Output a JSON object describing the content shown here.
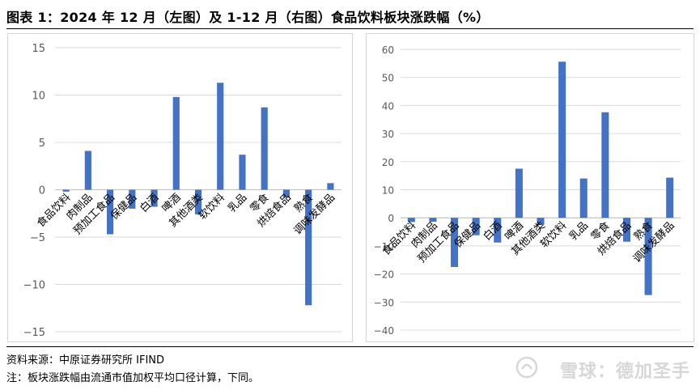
{
  "header": {
    "title": "图表 1：2024 年 12 月（左图）及 1-12 月（右图）食品饮料板块涨跌幅（%）"
  },
  "footer": {
    "source": "资料来源：中原证券研究所    IFIND",
    "note": "注：板块涨跌幅由流通市值加权平均口径计算，下同。"
  },
  "watermark": {
    "text": "雪球：德加圣手"
  },
  "colors": {
    "bar": "#4472c4",
    "grid": "#d9d9d9",
    "axis_text": "#595959"
  },
  "chart_data": [
    {
      "type": "bar",
      "categories": [
        "食品饮料",
        "肉制品",
        "预加工食品",
        "保健品",
        "白酒",
        "啤酒",
        "其他酒类",
        "软饮料",
        "乳品",
        "零食",
        "烘焙食品",
        "熟食",
        "调味发酵品"
      ],
      "values": [
        -0.2,
        4.1,
        -4.7,
        -2.0,
        -1.8,
        9.8,
        -2.6,
        11.3,
        3.7,
        8.7,
        -0.8,
        -12.2,
        0.7
      ],
      "ylim": [
        -15,
        15
      ],
      "yticks": [
        -15,
        -10,
        -5,
        0,
        5,
        10,
        15
      ],
      "title": "",
      "xlabel": "",
      "ylabel": ""
    },
    {
      "type": "bar",
      "categories": [
        "食品饮料",
        "肉制品",
        "预加工食品",
        "保健品",
        "白酒",
        "啤酒",
        "其他酒类",
        "软饮料",
        "乳品",
        "零食",
        "烘焙食品",
        "熟食",
        "调味发酵品"
      ],
      "values": [
        -1.5,
        -1.4,
        -17.5,
        -6.2,
        -8.8,
        17.5,
        -2.5,
        55.6,
        14.0,
        37.6,
        -8.5,
        -27.5,
        14.3
      ],
      "ylim": [
        -40,
        60
      ],
      "yticks": [
        -40,
        -30,
        -20,
        -10,
        0,
        10,
        20,
        30,
        40,
        50,
        60
      ],
      "title": "",
      "xlabel": "",
      "ylabel": ""
    }
  ]
}
